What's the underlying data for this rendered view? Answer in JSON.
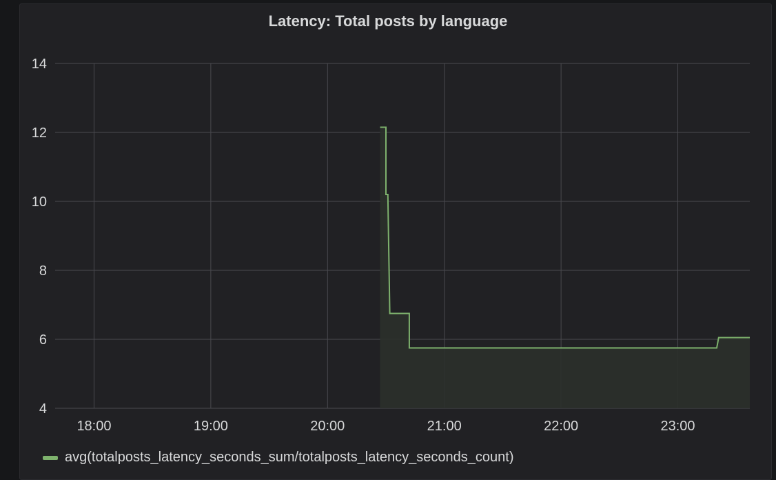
{
  "panel": {
    "title": "Latency: Total posts by language"
  },
  "colors": {
    "series": "#7eb26d",
    "grid": "#4a4a4f",
    "text": "#d8d9da",
    "fill": "#2b302b"
  },
  "chart_data": {
    "type": "line",
    "title": "Latency: Total posts by language",
    "xlabel": "",
    "ylabel": "",
    "x_ticks": [
      "18:00",
      "19:00",
      "20:00",
      "21:00",
      "22:00",
      "23:00"
    ],
    "y_ticks": [
      "4",
      "6",
      "8",
      "10",
      "12",
      "14"
    ],
    "xlim": [
      "17:40",
      "23:37"
    ],
    "ylim": [
      4,
      14
    ],
    "grid": true,
    "legend_position": "bottom-left",
    "series": [
      {
        "name": "avg(totalposts_latency_seconds_sum/totalposts_latency_seconds_count)",
        "fill": true,
        "points": [
          [
            "20:27",
            12.15
          ],
          [
            "20:30",
            12.15
          ],
          [
            "20:30",
            10.2
          ],
          [
            "20:31",
            10.2
          ],
          [
            "20:32",
            6.75
          ],
          [
            "20:42",
            6.75
          ],
          [
            "20:42",
            5.75
          ],
          [
            "23:20",
            5.75
          ],
          [
            "23:21",
            6.05
          ],
          [
            "23:37",
            6.05
          ]
        ]
      }
    ]
  }
}
